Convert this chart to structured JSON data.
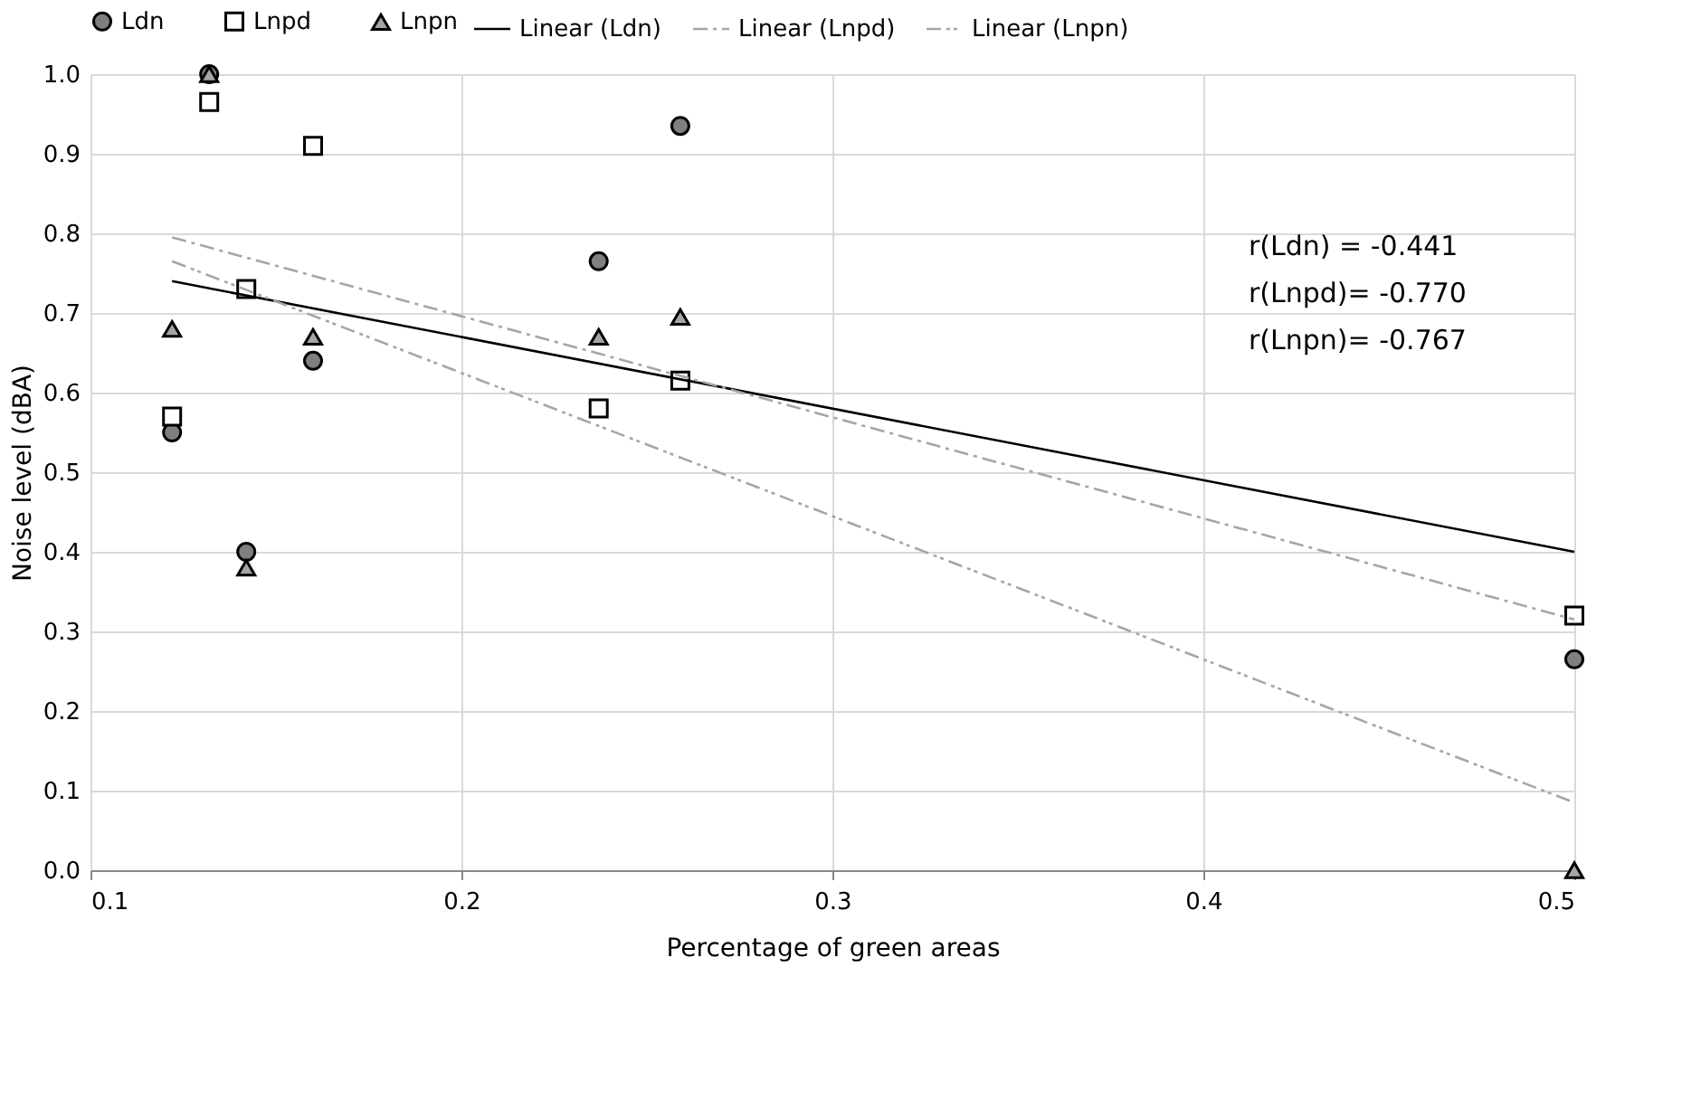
{
  "chart_data": {
    "type": "scatter",
    "xlabel": "Percentage of green areas",
    "ylabel": "Noise level (dBA)",
    "xlim": [
      0.1,
      0.5
    ],
    "xticks": [
      0.1,
      0.2,
      0.3,
      0.4,
      0.5
    ],
    "ylim": [
      0.0,
      1.0
    ],
    "yticks": [
      {
        "value": 0.0,
        "label": "0.0"
      },
      0.1,
      0.2,
      0.3,
      0.4,
      0.5,
      0.6,
      0.7,
      0.8,
      0.9,
      {
        "value": 1.0,
        "label": "1.0"
      }
    ],
    "grid": true,
    "legend": "top",
    "series": [
      {
        "name": "Ldn",
        "marker": "circle",
        "color": "#7f7f7f",
        "x": [
          0.122,
          0.132,
          0.142,
          0.16,
          0.237,
          0.259,
          0.5
        ],
        "values": [
          0.55,
          1.0,
          0.4,
          0.64,
          0.765,
          0.935,
          0.265
        ]
      },
      {
        "name": "Lnpd",
        "marker": "square",
        "color": "#ffffff",
        "x": [
          0.122,
          0.132,
          0.142,
          0.16,
          0.237,
          0.259,
          0.5
        ],
        "values": [
          0.57,
          0.965,
          0.73,
          0.91,
          0.58,
          0.615,
          0.32
        ]
      },
      {
        "name": "Lnpn",
        "marker": "triangle",
        "color": "#a5a5a5",
        "x": [
          0.122,
          0.132,
          0.142,
          0.16,
          0.237,
          0.259,
          0.5
        ],
        "values": [
          0.68,
          1.0,
          0.38,
          0.67,
          0.67,
          0.695,
          0.0
        ]
      },
      {
        "name": "Linear (Ldn)",
        "type": "line",
        "line_style": "solid",
        "color": "#000000",
        "x": [
          0.122,
          0.5
        ],
        "values": [
          0.74,
          0.4
        ]
      },
      {
        "name": "Linear (Lnpd)",
        "type": "line",
        "line_style": "dashed",
        "color": "#a6a6a6",
        "x": [
          0.122,
          0.5
        ],
        "values": [
          0.795,
          0.315
        ]
      },
      {
        "name": "Linear (Lnpn)",
        "type": "line",
        "line_style": "dotted",
        "color": "#a6a6a6",
        "x": [
          0.122,
          0.5
        ],
        "values": [
          0.765,
          0.085
        ]
      }
    ],
    "annotations": [
      "r(Ldn)  = -0.441",
      "r(Lnpd)= -0.770",
      "r(Lnpn)= -0.767"
    ]
  }
}
